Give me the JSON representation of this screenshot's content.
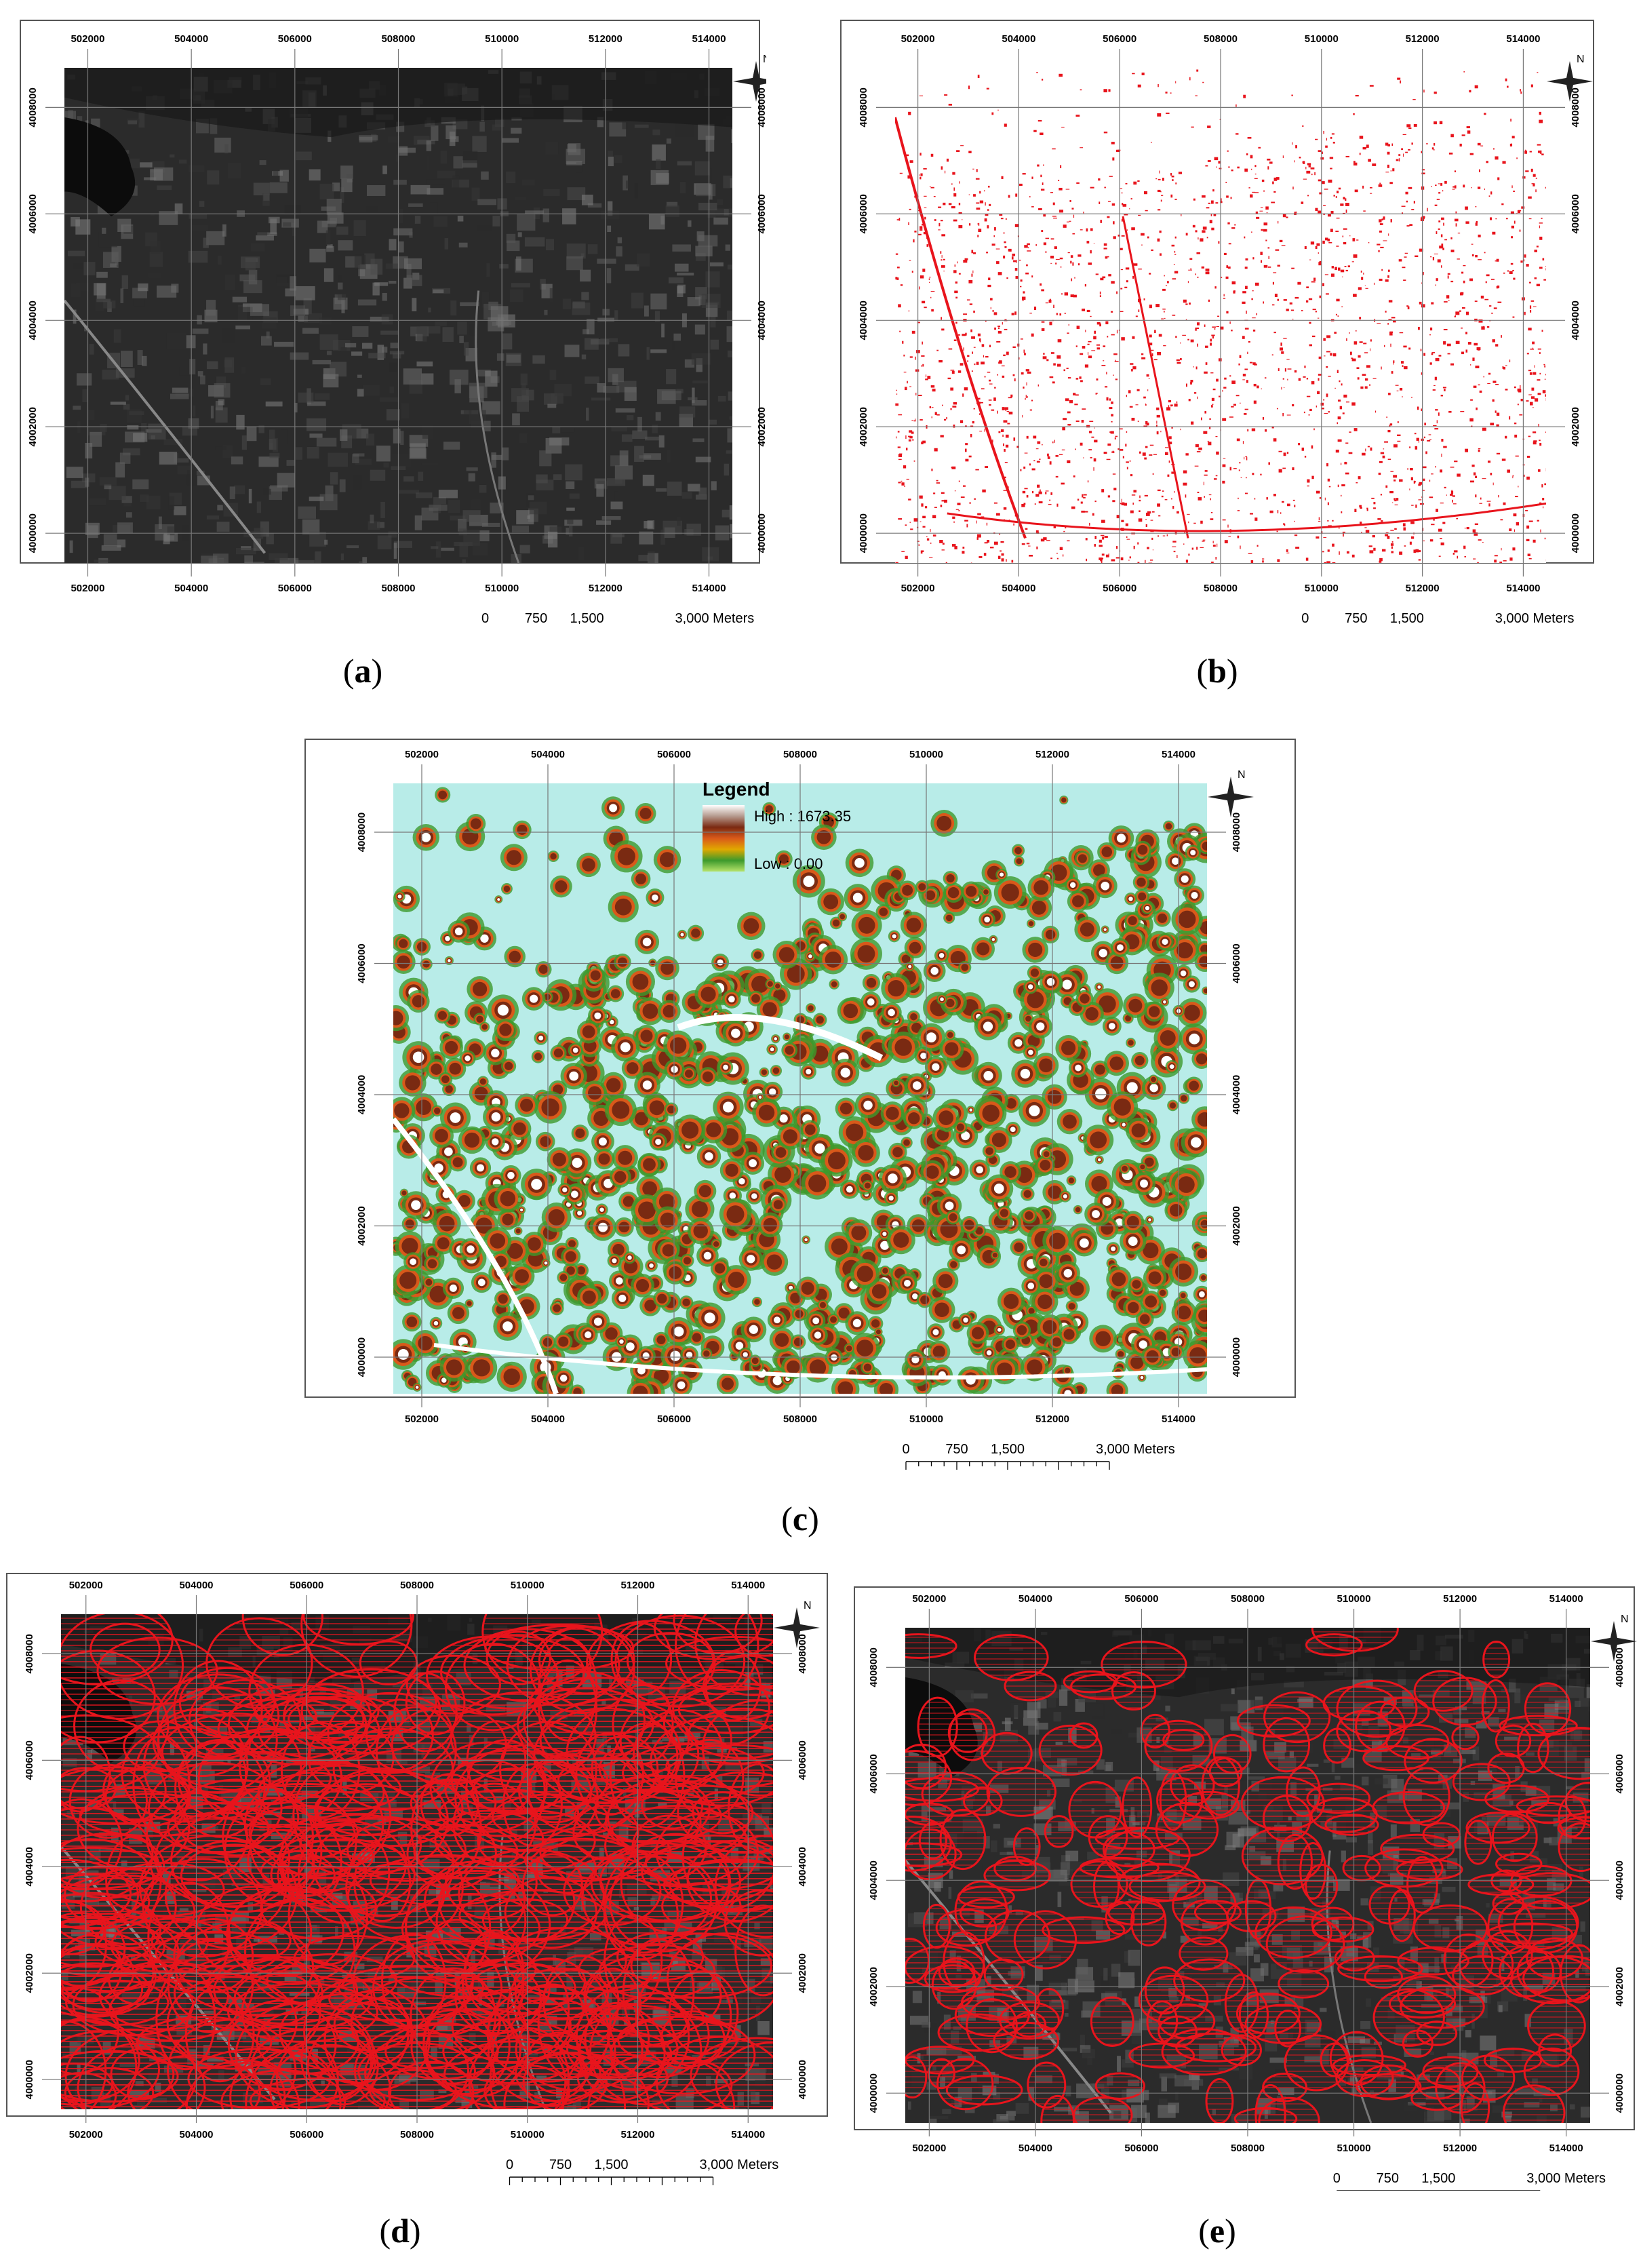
{
  "panels": [
    {
      "id": "a",
      "caption_letter": "a",
      "style": "satellite",
      "x_ticks": [
        "502000",
        "504000",
        "506000",
        "508000",
        "510000",
        "512000",
        "514000"
      ],
      "y_ticks": [
        "4008000",
        "4006000",
        "4004000",
        "4002000",
        "4000000"
      ],
      "scale_labels": [
        "0",
        "750",
        "1,500",
        "3,000 Meters"
      ]
    },
    {
      "id": "b",
      "caption_letter": "b",
      "style": "red-points",
      "x_ticks": [
        "502000",
        "504000",
        "506000",
        "508000",
        "510000",
        "512000",
        "514000"
      ],
      "y_ticks": [
        "4008000",
        "4006000",
        "4004000",
        "4002000",
        "4000000"
      ],
      "scale_labels": [
        "0",
        "750",
        "1,500",
        "3,000 Meters"
      ]
    },
    {
      "id": "c",
      "caption_letter": "c",
      "style": "density",
      "x_ticks": [
        "502000",
        "504000",
        "506000",
        "508000",
        "510000",
        "512000",
        "514000"
      ],
      "y_ticks": [
        "4008000",
        "4006000",
        "4004000",
        "4002000",
        "4000000"
      ],
      "scale_labels": [
        "0",
        "750",
        "1,500",
        "3,000 Meters"
      ],
      "legend": {
        "title": "Legend",
        "high_label": "High : 1673.35",
        "low_label": "Low : 0.00",
        "colors": [
          "#ffffff",
          "#b59a8e",
          "#7a2a12",
          "#d9591a",
          "#e0a800",
          "#3d9a2c",
          "#b6e36a"
        ]
      }
    },
    {
      "id": "d",
      "caption_letter": "d",
      "style": "satellite-overlay-dense",
      "x_ticks": [
        "502000",
        "504000",
        "506000",
        "508000",
        "510000",
        "512000",
        "514000"
      ],
      "y_ticks": [
        "4008000",
        "4006000",
        "4004000",
        "4002000",
        "4000000"
      ],
      "scale_labels": [
        "0",
        "750",
        "1,500",
        "3,000 Meters"
      ]
    },
    {
      "id": "e",
      "caption_letter": "e",
      "style": "satellite-overlay-sparse",
      "x_ticks": [
        "502000",
        "504000",
        "506000",
        "508000",
        "510000",
        "512000",
        "514000"
      ],
      "y_ticks": [
        "4008000",
        "4006000",
        "4004000",
        "4002000",
        "4000000"
      ],
      "scale_labels": [
        "0",
        "750",
        "1,500",
        "3,000 Meters"
      ]
    }
  ],
  "north_label": "N",
  "colors": {
    "red": "#e8141c",
    "satellite_dark": "#2b2b2b",
    "density_bg": "#b8ece8"
  }
}
